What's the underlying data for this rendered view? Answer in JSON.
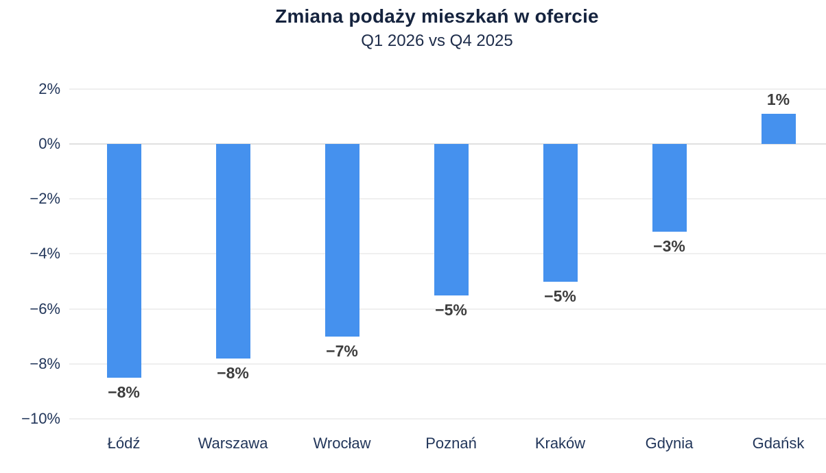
{
  "chart_data": {
    "type": "bar",
    "title": "Zmiana podaży mieszkań w ofercie",
    "subtitle": "Q1 2026 vs Q4 2025",
    "categories": [
      "Łódź",
      "Warszawa",
      "Wrocław",
      "Poznań",
      "Kraków",
      "Gdynia",
      "Gdańsk"
    ],
    "values": [
      -8.5,
      -7.8,
      -7.0,
      -5.5,
      -5.0,
      -3.2,
      1.1
    ],
    "bar_labels": [
      "−8%",
      "−8%",
      "−7%",
      "−5%",
      "−5%",
      "−3%",
      "1%"
    ],
    "yticks": [
      {
        "value": 2,
        "label": "2%"
      },
      {
        "value": 0,
        "label": "0%"
      },
      {
        "value": -2,
        "label": "−2%"
      },
      {
        "value": -4,
        "label": "−4%"
      },
      {
        "value": -6,
        "label": "−6%"
      },
      {
        "value": -8,
        "label": "−8%"
      },
      {
        "value": -10,
        "label": "−10%"
      }
    ],
    "ylim": [
      -10,
      2
    ],
    "xlabel": "",
    "ylabel": "",
    "grid": true,
    "legend": false,
    "colors": {
      "bar": "#4591ee",
      "title": "#15233e",
      "subtitle": "#1d2c4a",
      "axis_text": "#22365a",
      "value_label": "#3d3d3d",
      "gridline": "#efefef",
      "zero_line": "#e0e0e0",
      "background": "#ffffff"
    }
  }
}
